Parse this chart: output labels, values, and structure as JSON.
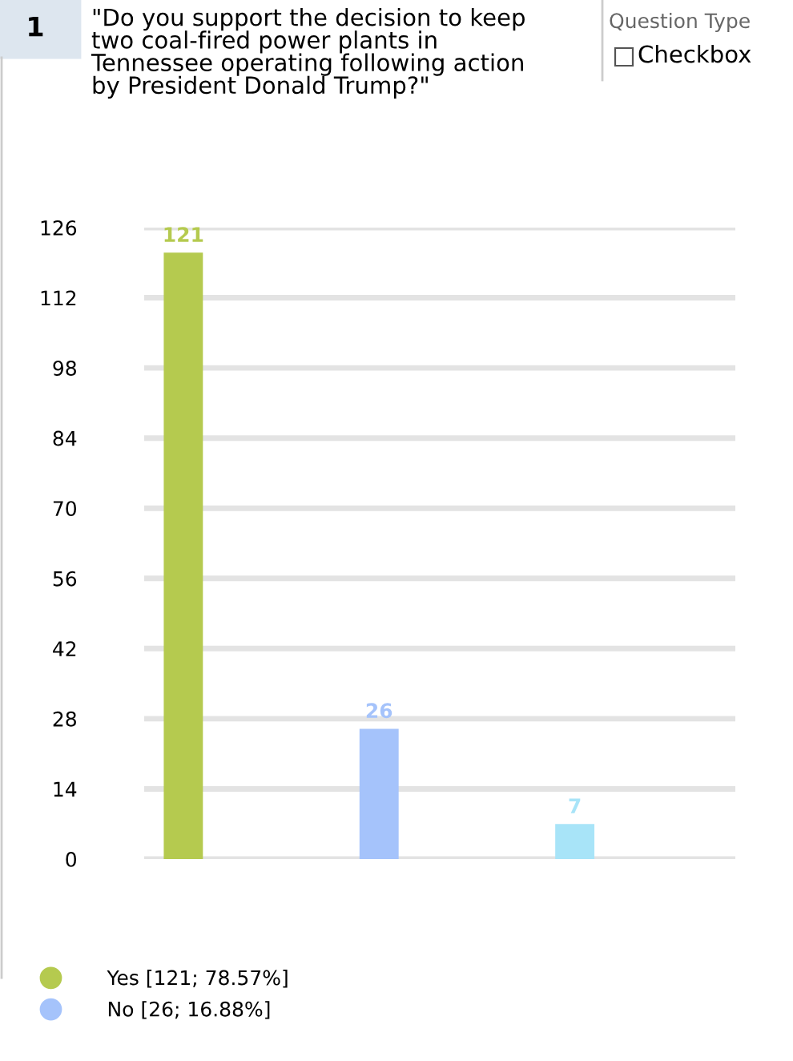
{
  "chart_data": {
    "type": "bar",
    "title": "\"Do you support the decision to keep\ntwo coal-fired power plants in\nTennessee operating following action\nby President Donald Trump?\"",
    "annotations": [
      "1",
      "Question Type",
      "Checkbox"
    ],
    "categories": [
      null,
      null,
      null
    ],
    "series": [
      {
        "name": "Yes [121; 78.57%]",
        "color": "#b5ca4f",
        "values": [
          121,
          null,
          null
        ]
      },
      {
        "name": "No [26; 16.88%]",
        "color": "#a5c3fb",
        "values": [
          null,
          26,
          null
        ]
      },
      {
        "color": "#a8e4f8",
        "values": [
          null,
          null,
          7
        ]
      }
    ],
    "ylim": [
      0,
      126
    ],
    "yticks": [
      0,
      14,
      28,
      42,
      56,
      70,
      84,
      98,
      112,
      126
    ],
    "grid": "y",
    "data_labels": true,
    "legend": "bottom left"
  }
}
